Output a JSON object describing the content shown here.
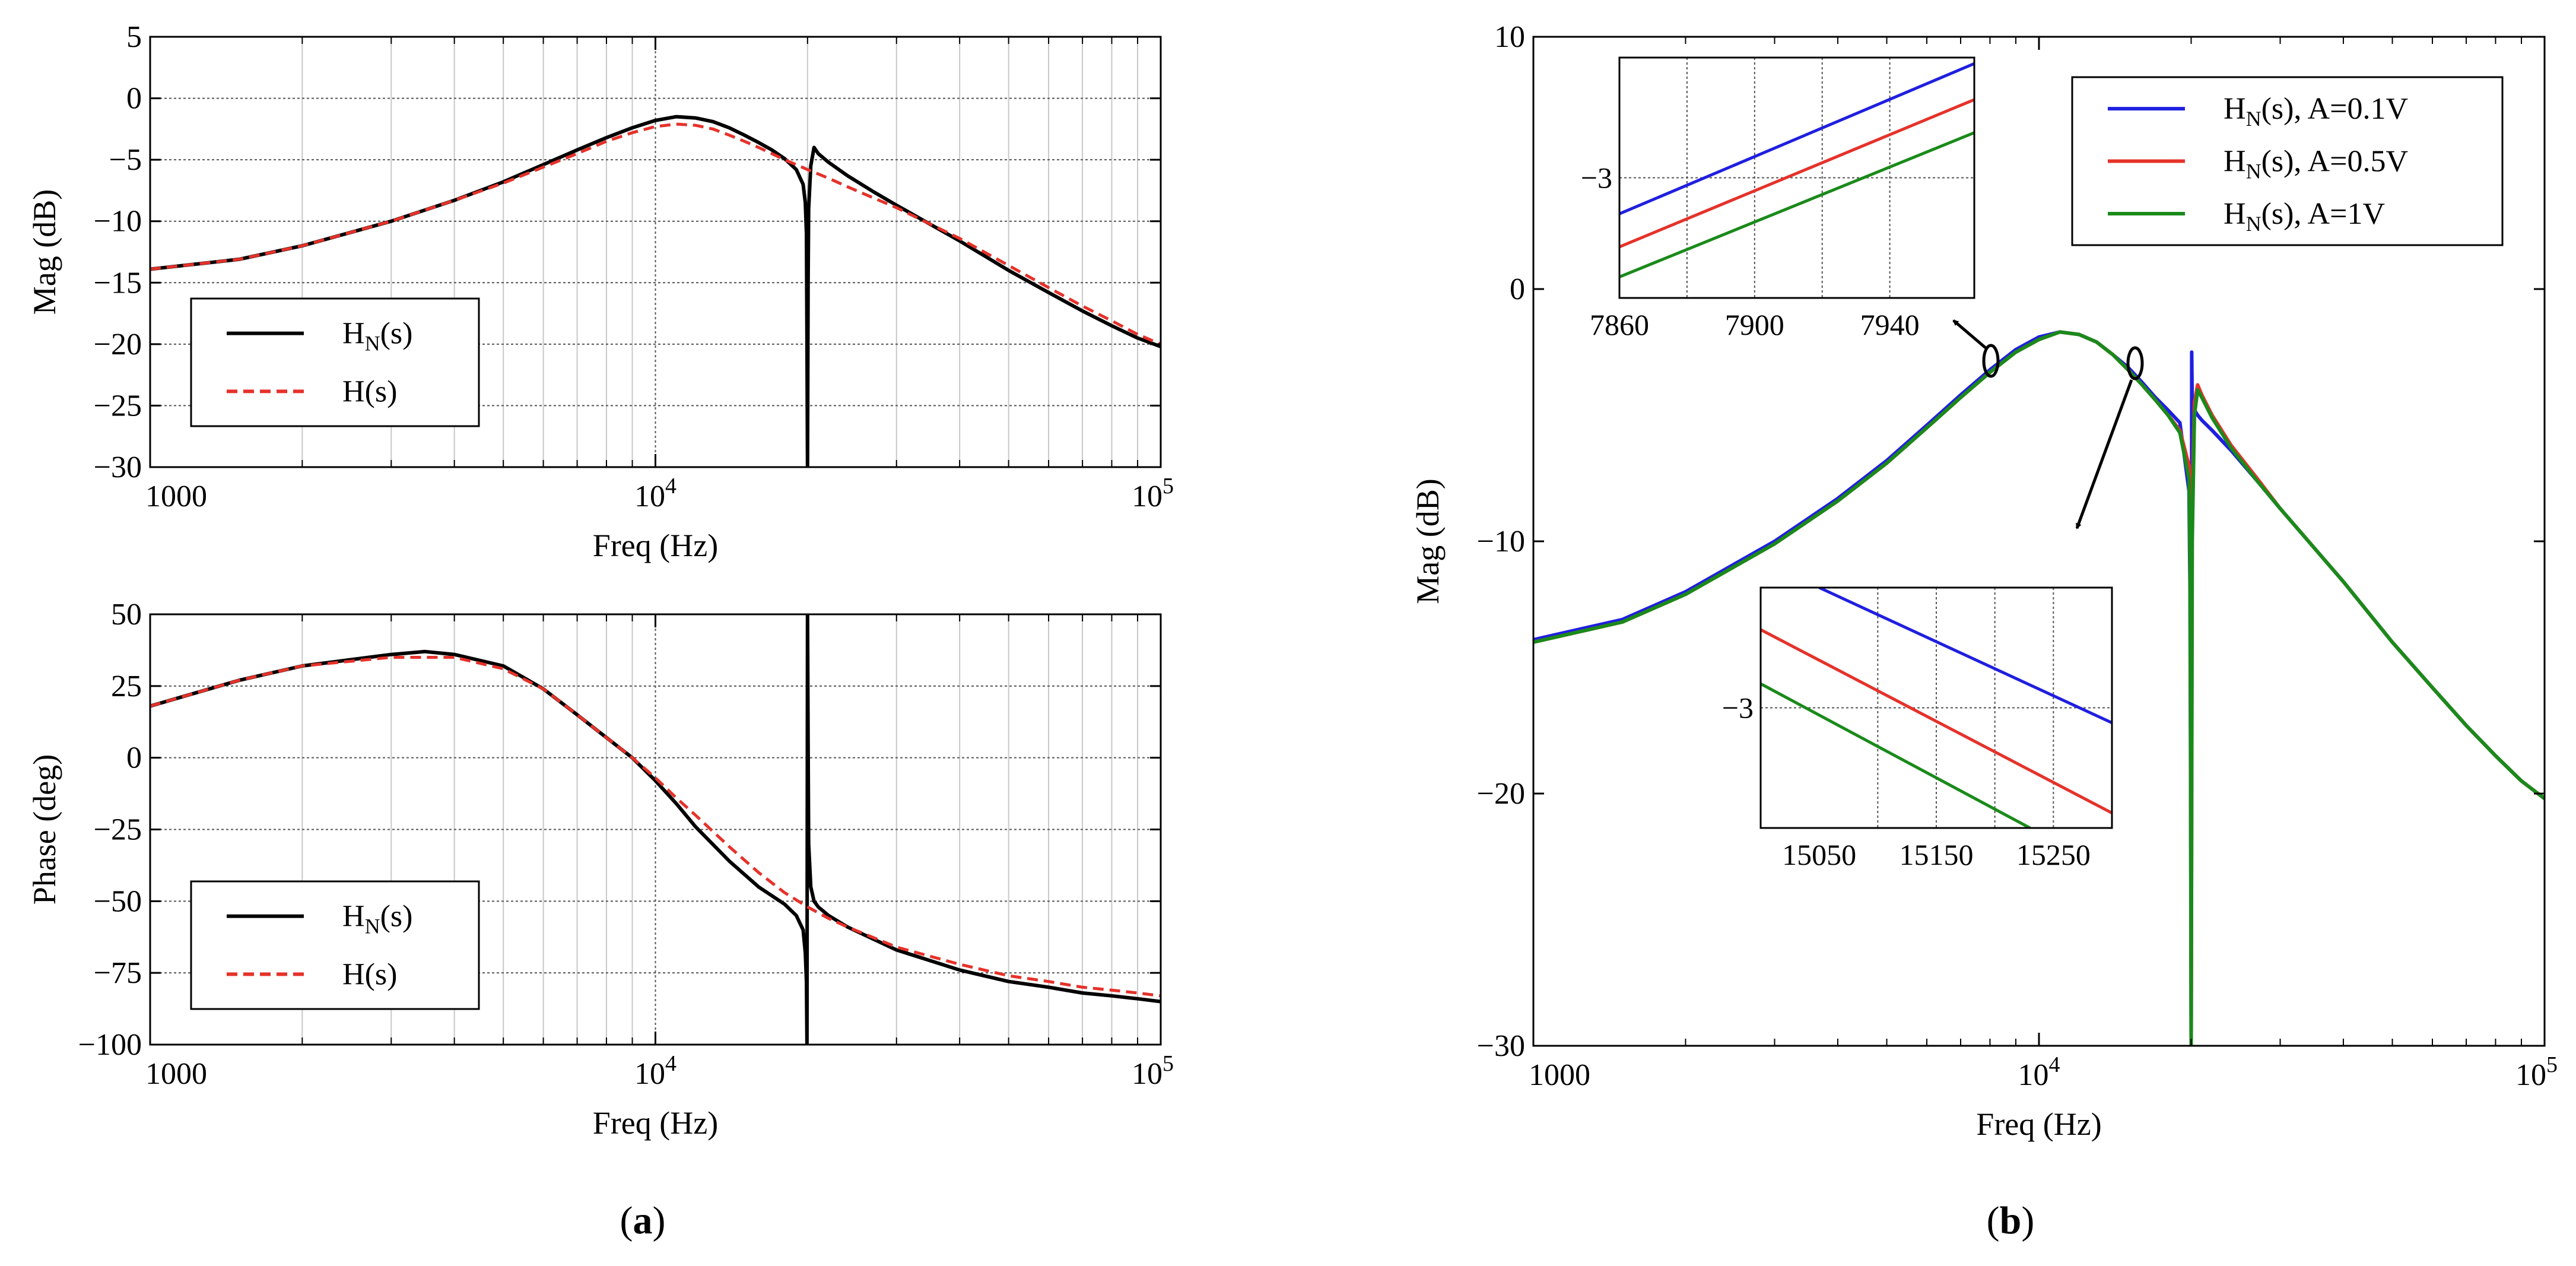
{
  "chart_data": [
    {
      "id": "a-mag",
      "type": "line",
      "xscale": "log",
      "xlim": [
        1000,
        100000
      ],
      "ylim": [
        -30,
        5
      ],
      "xticks": [
        1000,
        10000,
        100000
      ],
      "xtick_labels": [
        "1000",
        "10^4",
        "10^5"
      ],
      "yticks": [
        5,
        0,
        -5,
        -10,
        -15,
        -20,
        -25,
        -30
      ],
      "ytick_labels": [
        "5",
        "0",
        "−5",
        "−10",
        "−15",
        "−20",
        "−25",
        "−30"
      ],
      "xlabel": "Freq (Hz)",
      "ylabel": "Mag (dB)",
      "grid": true,
      "legend_position": "lower-left",
      "series": [
        {
          "name": "H_N(s)",
          "legend_label": "H",
          "legend_sub": "N",
          "legend_suffix": "(s)",
          "color": "#000000",
          "style": "solid",
          "x": [
            1000,
            1500,
            2000,
            3000,
            4000,
            5000,
            6000,
            7000,
            8000,
            9000,
            10000,
            11000,
            12000,
            13000,
            14000,
            15000,
            16000,
            17000,
            18000,
            19000,
            19600,
            19800,
            19900,
            19950,
            20000,
            20050,
            20100,
            20300,
            20600,
            21000,
            22000,
            24000,
            27000,
            30000,
            40000,
            50000,
            60000,
            70000,
            80000,
            90000,
            100000
          ],
          "y": [
            -13.9,
            -13.1,
            -12.0,
            -10.0,
            -8.3,
            -6.8,
            -5.4,
            -4.2,
            -3.2,
            -2.4,
            -1.8,
            -1.5,
            -1.6,
            -1.9,
            -2.4,
            -3.0,
            -3.6,
            -4.2,
            -4.9,
            -5.8,
            -7.0,
            -8.5,
            -11.0,
            -20.0,
            -30.0,
            -15.0,
            -9.0,
            -5.5,
            -4.0,
            -4.5,
            -5.2,
            -6.3,
            -7.6,
            -8.7,
            -11.6,
            -14.0,
            -15.8,
            -17.3,
            -18.5,
            -19.5,
            -20.2
          ]
        },
        {
          "name": "H(s)",
          "legend_label": "H",
          "legend_sub": "",
          "legend_suffix": "(s)",
          "color": "#e5322a",
          "style": "dashed",
          "x": [
            1000,
            1500,
            2000,
            3000,
            4000,
            5000,
            6000,
            7000,
            8000,
            9000,
            10000,
            11000,
            12000,
            13000,
            14000,
            15000,
            16000,
            17000,
            18000,
            19000,
            20000,
            22000,
            24000,
            27000,
            30000,
            40000,
            50000,
            60000,
            70000,
            80000,
            90000,
            100000
          ],
          "y": [
            -13.9,
            -13.1,
            -12.0,
            -10.0,
            -8.3,
            -6.9,
            -5.6,
            -4.5,
            -3.5,
            -2.8,
            -2.3,
            -2.1,
            -2.2,
            -2.5,
            -3.0,
            -3.5,
            -4.0,
            -4.5,
            -5.0,
            -5.4,
            -5.8,
            -6.5,
            -7.2,
            -8.1,
            -8.9,
            -11.4,
            -13.6,
            -15.4,
            -16.9,
            -18.1,
            -19.2,
            -20.0
          ]
        }
      ]
    },
    {
      "id": "a-phase",
      "type": "line",
      "xscale": "log",
      "xlim": [
        1000,
        100000
      ],
      "ylim": [
        -100,
        50
      ],
      "xticks": [
        1000,
        10000,
        100000
      ],
      "xtick_labels": [
        "1000",
        "10^4",
        "10^5"
      ],
      "yticks": [
        50,
        25,
        0,
        -25,
        -50,
        -75,
        -100
      ],
      "ytick_labels": [
        "50",
        "25",
        "0",
        "−25",
        "−50",
        "−75",
        "−100"
      ],
      "xlabel": "Freq (Hz)",
      "ylabel": "Phase (deg)",
      "grid": true,
      "legend_position": "lower-left",
      "series": [
        {
          "name": "H_N(s)",
          "legend_label": "H",
          "legend_sub": "N",
          "legend_suffix": "(s)",
          "color": "#000000",
          "style": "solid",
          "x": [
            1000,
            1500,
            2000,
            3000,
            3500,
            4000,
            5000,
            6000,
            7000,
            8000,
            9000,
            10000,
            11000,
            12000,
            14000,
            16000,
            18000,
            19000,
            19600,
            19800,
            19900,
            19950,
            20000,
            20050,
            20100,
            20300,
            20600,
            21000,
            22000,
            24000,
            30000,
            40000,
            50000,
            60000,
            70000,
            80000,
            90000,
            100000
          ],
          "y": [
            18,
            27,
            32,
            36,
            37,
            36,
            32,
            24,
            15,
            7,
            0,
            -8,
            -16,
            -24,
            -36,
            -45,
            -51,
            -55,
            -60,
            -68,
            -78,
            -100,
            50,
            5,
            -30,
            -45,
            -50,
            -52,
            -55,
            -59,
            -67,
            -74,
            -78,
            -80,
            -82,
            -83,
            -84,
            -85
          ]
        },
        {
          "name": "H(s)",
          "legend_label": "H",
          "legend_sub": "",
          "legend_suffix": "(s)",
          "color": "#e5322a",
          "style": "dashed",
          "x": [
            1000,
            1500,
            2000,
            3000,
            4000,
            5000,
            6000,
            7000,
            8000,
            9000,
            10000,
            11000,
            12000,
            14000,
            16000,
            18000,
            20000,
            22000,
            24000,
            30000,
            40000,
            50000,
            60000,
            70000,
            80000,
            90000,
            100000
          ],
          "y": [
            18,
            27,
            32,
            35,
            35,
            31,
            24,
            15,
            7,
            0,
            -7,
            -14,
            -20,
            -31,
            -40,
            -47,
            -52,
            -56,
            -59,
            -66,
            -72,
            -76,
            -78,
            -80,
            -81,
            -82,
            -83
          ]
        }
      ]
    },
    {
      "id": "b-mag",
      "type": "line",
      "xscale": "log",
      "xlim": [
        1000,
        100000
      ],
      "ylim": [
        -30,
        10
      ],
      "xticks": [
        1000,
        10000,
        100000
      ],
      "xtick_labels": [
        "1000",
        "10^4",
        "10^5"
      ],
      "yticks": [
        10,
        0,
        -10,
        -20,
        -30
      ],
      "ytick_labels": [
        "10",
        "0",
        "−10",
        "−20",
        "−30"
      ],
      "xlabel": "Freq (Hz)",
      "ylabel": "Mag (dB)",
      "grid": false,
      "legend_position": "top-right",
      "series": [
        {
          "name": "H_N(s), A=0.1V",
          "legend_label": "H",
          "legend_sub": "N",
          "legend_suffix": "(s), A=0.1V",
          "color": "#1f1fe0",
          "style": "solid",
          "x": [
            1000,
            1500,
            2000,
            3000,
            4000,
            5000,
            6000,
            7000,
            8000,
            9000,
            10000,
            11000,
            12000,
            13000,
            14000,
            15000,
            16000,
            17000,
            18000,
            19000,
            19800,
            19900,
            19950,
            20000,
            20050,
            20100,
            20300,
            20600,
            21000,
            22000,
            24000,
            27000,
            30000,
            40000,
            50000,
            60000,
            70000,
            80000,
            90000,
            100000
          ],
          "y": [
            -13.9,
            -13.1,
            -12.0,
            -10.0,
            -8.3,
            -6.8,
            -5.4,
            -4.2,
            -3.2,
            -2.4,
            -1.9,
            -1.7,
            -1.8,
            -2.1,
            -2.6,
            -3.1,
            -3.7,
            -4.3,
            -4.8,
            -5.3,
            -8.0,
            -12.0,
            -20.0,
            -30.0,
            -2.5,
            -4.5,
            -4.8,
            -5.0,
            -5.2,
            -5.6,
            -6.4,
            -7.6,
            -8.7,
            -11.6,
            -14.0,
            -15.8,
            -17.3,
            -18.5,
            -19.5,
            -20.2
          ]
        },
        {
          "name": "H_N(s), A=0.5V",
          "legend_label": "H",
          "legend_sub": "N",
          "legend_suffix": "(s), A=0.5V",
          "color": "#e5322a",
          "style": "solid",
          "x": [
            1000,
            1500,
            2000,
            3000,
            4000,
            5000,
            6000,
            7000,
            8000,
            9000,
            10000,
            11000,
            12000,
            13000,
            14000,
            15000,
            16000,
            17000,
            18000,
            19000,
            19800,
            19900,
            19950,
            20000,
            20100,
            20300,
            20600,
            21000,
            22000,
            24000,
            27000,
            30000,
            40000,
            50000,
            60000,
            70000,
            80000,
            90000,
            100000
          ],
          "y": [
            -14.0,
            -13.2,
            -12.1,
            -10.1,
            -8.4,
            -6.9,
            -5.5,
            -4.3,
            -3.3,
            -2.5,
            -2.0,
            -1.7,
            -1.8,
            -2.1,
            -2.6,
            -3.2,
            -3.8,
            -4.4,
            -5.0,
            -5.6,
            -7.0,
            -10.0,
            -18.0,
            -30.0,
            -8.0,
            -4.5,
            -3.8,
            -4.2,
            -5.0,
            -6.2,
            -7.5,
            -8.7,
            -11.6,
            -14.0,
            -15.8,
            -17.3,
            -18.5,
            -19.5,
            -20.2
          ]
        },
        {
          "name": "H_N(s), A=1V",
          "legend_label": "H",
          "legend_sub": "N",
          "legend_suffix": "(s), A=1V",
          "color": "#1a8a1a",
          "style": "solid",
          "x": [
            1000,
            1500,
            2000,
            3000,
            4000,
            5000,
            6000,
            7000,
            8000,
            9000,
            10000,
            11000,
            12000,
            13000,
            14000,
            15000,
            16000,
            17000,
            18000,
            19000,
            19800,
            19900,
            19950,
            20000,
            20100,
            20300,
            20600,
            21000,
            22000,
            24000,
            27000,
            30000,
            40000,
            50000,
            60000,
            70000,
            80000,
            90000,
            100000
          ],
          "y": [
            -14.0,
            -13.2,
            -12.1,
            -10.1,
            -8.4,
            -6.9,
            -5.5,
            -4.3,
            -3.3,
            -2.5,
            -2.0,
            -1.7,
            -1.8,
            -2.1,
            -2.6,
            -3.2,
            -3.8,
            -4.4,
            -5.0,
            -5.7,
            -7.5,
            -11.0,
            -19.0,
            -30.0,
            -10.0,
            -5.0,
            -4.0,
            -4.3,
            -5.1,
            -6.3,
            -7.6,
            -8.7,
            -11.6,
            -14.0,
            -15.8,
            -17.3,
            -18.5,
            -19.5,
            -20.2
          ]
        }
      ]
    }
  ],
  "insets": [
    {
      "id": "inset-upper",
      "xlim": [
        7860,
        7965
      ],
      "ylim": [
        -3.4,
        -2.6
      ],
      "xticks": [
        7860,
        7900,
        7940
      ],
      "xtick_labels": [
        "7860",
        "7900",
        "7940"
      ],
      "xgrid": [
        7880,
        7900,
        7920,
        7940
      ],
      "yticks": [
        -3
      ],
      "ytick_labels": [
        "−3"
      ],
      "series": [
        {
          "name": "A=0.1V",
          "color": "#1f1fe0",
          "x": [
            7860,
            7965
          ],
          "y": [
            -3.12,
            -2.62
          ]
        },
        {
          "name": "A=0.5V",
          "color": "#e5322a",
          "x": [
            7860,
            7965
          ],
          "y": [
            -3.23,
            -2.74
          ]
        },
        {
          "name": "A=1V",
          "color": "#1a8a1a",
          "x": [
            7860,
            7965
          ],
          "y": [
            -3.33,
            -2.85
          ]
        }
      ]
    },
    {
      "id": "inset-lower",
      "xlim": [
        15000,
        15300
      ],
      "ylim": [
        -3.4,
        -2.6
      ],
      "xticks": [
        15050,
        15150,
        15250
      ],
      "xtick_labels": [
        "15050",
        "15150",
        "15250"
      ],
      "xgrid": [
        15100,
        15150,
        15200,
        15250
      ],
      "yticks": [
        -3
      ],
      "ytick_labels": [
        "−3"
      ],
      "series": [
        {
          "name": "A=0.1V",
          "color": "#1f1fe0",
          "x": [
            15050,
            15300
          ],
          "y": [
            -2.6,
            -3.05
          ]
        },
        {
          "name": "A=0.5V",
          "color": "#e5322a",
          "x": [
            15000,
            15300
          ],
          "y": [
            -2.74,
            -3.35
          ]
        },
        {
          "name": "A=1V",
          "color": "#1a8a1a",
          "x": [
            15000,
            15230
          ],
          "y": [
            -2.92,
            -3.4
          ]
        }
      ]
    }
  ],
  "panel_labels": [
    "a",
    "b"
  ]
}
